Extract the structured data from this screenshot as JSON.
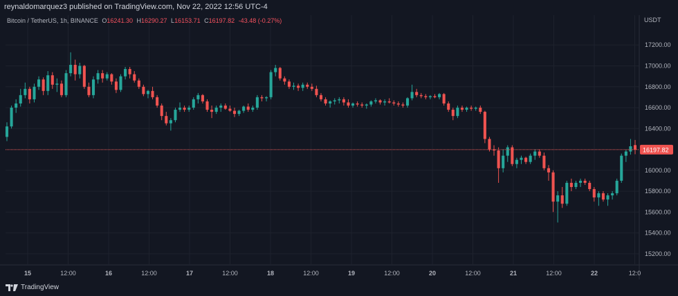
{
  "header": {
    "publisher_line": "reynaldomarquez3 published on TradingView.com, Nov 22, 2022 12:56 UTC-4"
  },
  "legend": {
    "symbol": "Bitcoin / TetherUS, 1h, BINANCE",
    "open_label": "O",
    "open": "16241.30",
    "high_label": "H",
    "high": "16290.27",
    "low_label": "L",
    "low": "16153.71",
    "close_label": "C",
    "close": "16197.82",
    "change": "-43.48 (-0.27%)"
  },
  "axis": {
    "currency": "USDT"
  },
  "footer": {
    "logo_text": "TradingView"
  },
  "colors": {
    "background": "#131722",
    "grid": "#1e222d",
    "up": "#26a69a",
    "down": "#ef5350",
    "text": "#b2b5be",
    "price_line": "#ef5350"
  },
  "chart_data": {
    "type": "candlestick",
    "y_ticks": [
      17200,
      17000,
      16800,
      16600,
      16400,
      16200,
      16000,
      15800,
      15600,
      15400,
      15200
    ],
    "y_tick_labels": [
      "17200.00",
      "17000.00",
      "16800.00",
      "16600.00",
      "16400.00",
      "16200.00",
      "16000.00",
      "15800.00",
      "15600.00",
      "15400.00",
      "15200.00"
    ],
    "ylim": [
      15100,
      17380
    ],
    "x_ticks": [
      "15",
      "12:00",
      "16",
      "12:00",
      "17",
      "12:00",
      "18",
      "12:00",
      "19",
      "12:00",
      "20",
      "12:00",
      "21",
      "12:00",
      "22",
      "12:0"
    ],
    "last_price": 16197.82,
    "last_price_label": "16197.82",
    "candles": [
      [
        16320,
        16460,
        16280,
        16420
      ],
      [
        16420,
        16620,
        16400,
        16600
      ],
      [
        16600,
        16680,
        16550,
        16640
      ],
      [
        16640,
        16780,
        16610,
        16720
      ],
      [
        16720,
        16840,
        16690,
        16780
      ],
      [
        16780,
        16800,
        16640,
        16680
      ],
      [
        16680,
        16830,
        16650,
        16800
      ],
      [
        16800,
        16900,
        16770,
        16870
      ],
      [
        16870,
        16890,
        16720,
        16760
      ],
      [
        16760,
        16950,
        16720,
        16910
      ],
      [
        16910,
        16940,
        16780,
        16820
      ],
      [
        16820,
        16880,
        16750,
        16830
      ],
      [
        16830,
        16860,
        16700,
        16720
      ],
      [
        16720,
        16960,
        16700,
        16930
      ],
      [
        16930,
        17130,
        16900,
        17010
      ],
      [
        17010,
        17060,
        16860,
        16920
      ],
      [
        16920,
        17030,
        16880,
        17000
      ],
      [
        17000,
        17010,
        16780,
        16800
      ],
      [
        16800,
        16840,
        16700,
        16720
      ],
      [
        16720,
        16900,
        16690,
        16870
      ],
      [
        16870,
        16960,
        16830,
        16930
      ],
      [
        16930,
        16960,
        16840,
        16880
      ],
      [
        16880,
        16940,
        16860,
        16920
      ],
      [
        16920,
        16930,
        16820,
        16850
      ],
      [
        16850,
        16880,
        16740,
        16770
      ],
      [
        16770,
        16920,
        16750,
        16900
      ],
      [
        16900,
        16990,
        16870,
        16970
      ],
      [
        16970,
        16990,
        16880,
        16920
      ],
      [
        16920,
        16950,
        16840,
        16860
      ],
      [
        16860,
        16880,
        16780,
        16800
      ],
      [
        16800,
        16820,
        16710,
        16730
      ],
      [
        16730,
        16770,
        16690,
        16760
      ],
      [
        16760,
        16800,
        16680,
        16700
      ],
      [
        16700,
        16720,
        16600,
        16620
      ],
      [
        16620,
        16640,
        16480,
        16520
      ],
      [
        16520,
        16560,
        16430,
        16450
      ],
      [
        16450,
        16500,
        16380,
        16480
      ],
      [
        16480,
        16600,
        16460,
        16580
      ],
      [
        16580,
        16650,
        16560,
        16600
      ],
      [
        16600,
        16620,
        16560,
        16580
      ],
      [
        16580,
        16620,
        16560,
        16600
      ],
      [
        16600,
        16700,
        16580,
        16680
      ],
      [
        16680,
        16740,
        16640,
        16720
      ],
      [
        16720,
        16730,
        16640,
        16660
      ],
      [
        16660,
        16680,
        16560,
        16580
      ],
      [
        16580,
        16620,
        16500,
        16560
      ],
      [
        16560,
        16620,
        16540,
        16600
      ],
      [
        16600,
        16640,
        16560,
        16620
      ],
      [
        16620,
        16640,
        16580,
        16590
      ],
      [
        16590,
        16620,
        16560,
        16570
      ],
      [
        16570,
        16600,
        16510,
        16540
      ],
      [
        16540,
        16580,
        16520,
        16570
      ],
      [
        16570,
        16620,
        16550,
        16610
      ],
      [
        16610,
        16640,
        16560,
        16580
      ],
      [
        16580,
        16620,
        16560,
        16600
      ],
      [
        16600,
        16720,
        16580,
        16700
      ],
      [
        16700,
        16720,
        16660,
        16690
      ],
      [
        16690,
        16710,
        16660,
        16700
      ],
      [
        16700,
        16960,
        16680,
        16940
      ],
      [
        16940,
        17010,
        16900,
        16980
      ],
      [
        16980,
        16990,
        16860,
        16880
      ],
      [
        16880,
        16900,
        16820,
        16850
      ],
      [
        16850,
        16870,
        16780,
        16800
      ],
      [
        16800,
        16840,
        16770,
        16810
      ],
      [
        16810,
        16830,
        16760,
        16790
      ],
      [
        16790,
        16840,
        16760,
        16820
      ],
      [
        16820,
        16840,
        16780,
        16800
      ],
      [
        16800,
        16830,
        16760,
        16780
      ],
      [
        16780,
        16810,
        16700,
        16720
      ],
      [
        16720,
        16740,
        16660,
        16680
      ],
      [
        16680,
        16700,
        16620,
        16640
      ],
      [
        16640,
        16670,
        16600,
        16660
      ],
      [
        16660,
        16690,
        16630,
        16670
      ],
      [
        16670,
        16700,
        16640,
        16680
      ],
      [
        16680,
        16700,
        16620,
        16650
      ],
      [
        16650,
        16680,
        16600,
        16620
      ],
      [
        16620,
        16650,
        16600,
        16640
      ],
      [
        16640,
        16660,
        16610,
        16630
      ],
      [
        16630,
        16650,
        16600,
        16620
      ],
      [
        16620,
        16640,
        16590,
        16630
      ],
      [
        16630,
        16670,
        16610,
        16660
      ],
      [
        16660,
        16690,
        16640,
        16670
      ],
      [
        16670,
        16680,
        16630,
        16650
      ],
      [
        16650,
        16680,
        16620,
        16660
      ],
      [
        16660,
        16690,
        16640,
        16650
      ],
      [
        16650,
        16670,
        16620,
        16640
      ],
      [
        16640,
        16660,
        16610,
        16630
      ],
      [
        16630,
        16650,
        16600,
        16620
      ],
      [
        16620,
        16700,
        16600,
        16690
      ],
      [
        16690,
        16820,
        16670,
        16750
      ],
      [
        16750,
        16780,
        16700,
        16720
      ],
      [
        16720,
        16740,
        16690,
        16710
      ],
      [
        16710,
        16730,
        16680,
        16700
      ],
      [
        16700,
        16720,
        16680,
        16710
      ],
      [
        16710,
        16730,
        16690,
        16700
      ],
      [
        16700,
        16740,
        16680,
        16730
      ],
      [
        16730,
        16740,
        16620,
        16640
      ],
      [
        16640,
        16660,
        16560,
        16580
      ],
      [
        16580,
        16600,
        16480,
        16520
      ],
      [
        16520,
        16620,
        16500,
        16600
      ],
      [
        16600,
        16620,
        16560,
        16580
      ],
      [
        16580,
        16610,
        16560,
        16600
      ],
      [
        16600,
        16620,
        16570,
        16590
      ],
      [
        16590,
        16610,
        16570,
        16600
      ],
      [
        16600,
        16620,
        16540,
        16560
      ],
      [
        16560,
        16570,
        16260,
        16300
      ],
      [
        16300,
        16320,
        16180,
        16200
      ],
      [
        16200,
        16240,
        16140,
        16190
      ],
      [
        16190,
        16220,
        15880,
        16020
      ],
      [
        16020,
        16200,
        15980,
        16140
      ],
      [
        16140,
        16240,
        16080,
        16220
      ],
      [
        16220,
        16240,
        16040,
        16060
      ],
      [
        16060,
        16120,
        16020,
        16100
      ],
      [
        16100,
        16140,
        16060,
        16120
      ],
      [
        16120,
        16130,
        16060,
        16080
      ],
      [
        16080,
        16160,
        16060,
        16140
      ],
      [
        16140,
        16200,
        16100,
        16180
      ],
      [
        16180,
        16200,
        16120,
        16140
      ],
      [
        16140,
        16170,
        16000,
        16020
      ],
      [
        16020,
        16050,
        15900,
        15980
      ],
      [
        15980,
        16000,
        15600,
        15700
      ],
      [
        15700,
        15800,
        15500,
        15760
      ],
      [
        15760,
        15840,
        15640,
        15680
      ],
      [
        15680,
        15900,
        15660,
        15880
      ],
      [
        15880,
        15920,
        15800,
        15840
      ],
      [
        15840,
        15900,
        15820,
        15880
      ],
      [
        15880,
        15920,
        15840,
        15900
      ],
      [
        15900,
        15920,
        15860,
        15880
      ],
      [
        15880,
        15900,
        15800,
        15820
      ],
      [
        15820,
        15840,
        15700,
        15740
      ],
      [
        15740,
        15800,
        15660,
        15780
      ],
      [
        15780,
        15800,
        15700,
        15720
      ],
      [
        15720,
        15780,
        15660,
        15760
      ],
      [
        15760,
        15800,
        15720,
        15780
      ],
      [
        15780,
        15920,
        15760,
        15900
      ],
      [
        15900,
        16160,
        15880,
        16140
      ],
      [
        16140,
        16200,
        16080,
        16180
      ],
      [
        16180,
        16300,
        16150,
        16230
      ],
      [
        16241.3,
        16290.27,
        16153.71,
        16197.82
      ]
    ]
  }
}
